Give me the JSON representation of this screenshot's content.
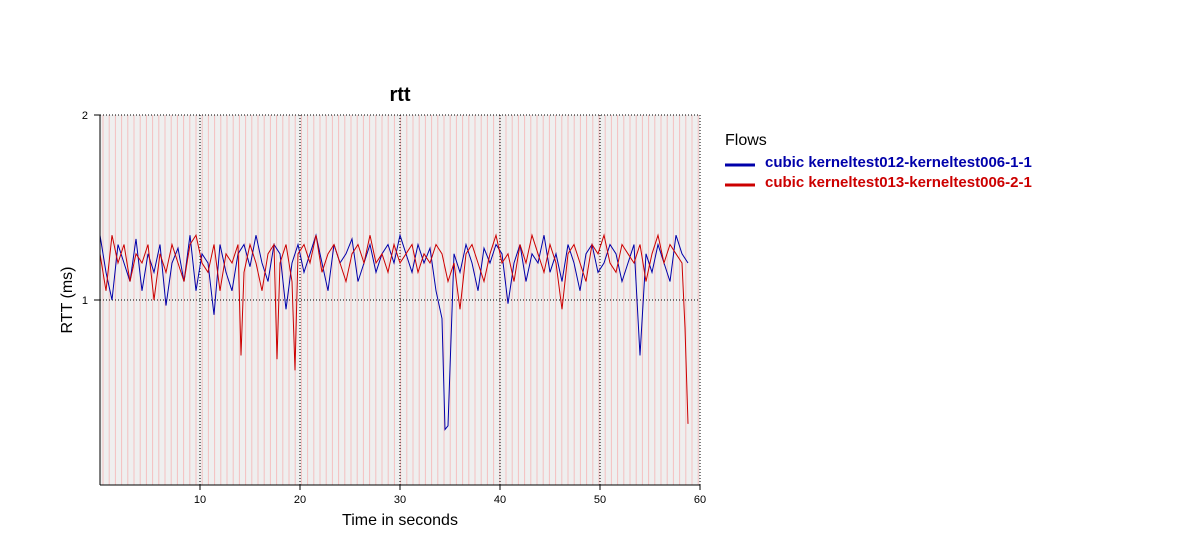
{
  "chart_data": {
    "type": "line",
    "title": "rtt",
    "xlabel": "Time in seconds",
    "ylabel": "RTT (ms)",
    "xlim": [
      0,
      60
    ],
    "ylim": [
      0,
      2
    ],
    "x_ticks": [
      "10",
      "20",
      "30",
      "40",
      "50",
      "60"
    ],
    "y_ticks": [
      "1",
      "2"
    ],
    "grid": true,
    "legend": {
      "title": "Flows",
      "placement": "right"
    },
    "series": [
      {
        "name": "cubic kerneltest012-kerneltest006-1-1",
        "color": "#0000aa",
        "x": [
          0,
          0.6,
          1.2,
          1.8,
          2.4,
          3,
          3.6,
          4.2,
          4.8,
          5.4,
          6,
          6.6,
          7.2,
          7.8,
          8.4,
          9,
          9.6,
          10.2,
          10.8,
          11.4,
          12,
          12.6,
          13.2,
          13.8,
          14.4,
          15,
          15.6,
          16.2,
          16.8,
          17.4,
          18,
          18.6,
          19.2,
          19.8,
          20.4,
          21,
          21.6,
          22.2,
          22.8,
          23.4,
          24,
          24.6,
          25.2,
          25.8,
          26.4,
          27,
          27.6,
          28.2,
          28.8,
          29.4,
          30,
          30.6,
          31.2,
          31.8,
          32.4,
          33,
          33.6,
          34.2,
          34.5,
          34.8,
          35.4,
          36,
          36.6,
          37.2,
          37.8,
          38.4,
          39,
          39.6,
          40.2,
          40.8,
          41.4,
          42,
          42.6,
          43.2,
          43.8,
          44.4,
          45,
          45.6,
          46.2,
          46.8,
          47.4,
          48,
          48.6,
          49.2,
          49.8,
          50.4,
          51,
          51.6,
          52.2,
          52.8,
          53.4,
          54,
          54.6,
          55.2,
          55.8,
          56.4,
          57,
          57.6,
          58.2,
          58.8
        ],
        "values": [
          1.35,
          1.15,
          1.0,
          1.3,
          1.2,
          1.1,
          1.33,
          1.05,
          1.25,
          1.15,
          1.3,
          0.97,
          1.2,
          1.28,
          1.1,
          1.35,
          1.05,
          1.25,
          1.2,
          0.92,
          1.3,
          1.15,
          1.05,
          1.25,
          1.3,
          1.18,
          1.35,
          1.2,
          1.1,
          1.3,
          1.25,
          0.95,
          1.2,
          1.3,
          1.15,
          1.25,
          1.35,
          1.2,
          1.05,
          1.3,
          1.2,
          1.25,
          1.33,
          1.1,
          1.2,
          1.3,
          1.15,
          1.25,
          1.3,
          1.2,
          1.35,
          1.25,
          1.15,
          1.3,
          1.2,
          1.28,
          1.05,
          0.9,
          0.3,
          0.32,
          1.25,
          1.15,
          1.3,
          1.2,
          1.05,
          1.28,
          1.2,
          1.3,
          1.25,
          0.98,
          1.2,
          1.3,
          1.1,
          1.25,
          1.2,
          1.35,
          1.15,
          1.25,
          1.1,
          1.3,
          1.2,
          1.05,
          1.25,
          1.3,
          1.15,
          1.2,
          1.3,
          1.25,
          1.1,
          1.2,
          1.3,
          0.7,
          1.25,
          1.15,
          1.3,
          1.2,
          1.1,
          1.35,
          1.25,
          1.2
        ]
      },
      {
        "name": "cubic kerneltest013-kerneltest006-2-1",
        "color": "#cc0000",
        "x": [
          0,
          0.6,
          1.2,
          1.8,
          2.4,
          3,
          3.6,
          4.2,
          4.8,
          5.4,
          6,
          6.6,
          7.2,
          7.8,
          8.4,
          9,
          9.6,
          10.2,
          10.8,
          11.4,
          12,
          12.6,
          13.2,
          13.8,
          14.1,
          14.4,
          15,
          15.6,
          16.2,
          16.8,
          17.4,
          17.7,
          18,
          18.6,
          19.2,
          19.5,
          19.8,
          20.4,
          21,
          21.6,
          22.2,
          22.8,
          23.4,
          24,
          24.6,
          25.2,
          25.8,
          26.4,
          27,
          27.6,
          28.2,
          28.8,
          29.4,
          30,
          30.6,
          31.2,
          31.8,
          32.4,
          33,
          33.6,
          34.2,
          34.8,
          35.4,
          36,
          36.6,
          37.2,
          37.8,
          38.4,
          39,
          39.6,
          40.2,
          40.8,
          41.4,
          42,
          42.6,
          43.2,
          43.8,
          44.4,
          45,
          45.6,
          46.2,
          46.8,
          47.4,
          48,
          48.6,
          49.2,
          49.8,
          50.4,
          51,
          51.6,
          52.2,
          52.8,
          53.4,
          54,
          54.6,
          55.2,
          55.8,
          56.4,
          57,
          57.6,
          58.2,
          58.5,
          58.8
        ],
        "values": [
          1.25,
          1.05,
          1.35,
          1.2,
          1.3,
          1.1,
          1.25,
          1.2,
          1.3,
          1.0,
          1.25,
          1.15,
          1.3,
          1.2,
          1.1,
          1.3,
          1.35,
          1.2,
          1.15,
          1.3,
          1.05,
          1.25,
          1.2,
          1.3,
          0.7,
          1.15,
          1.3,
          1.2,
          1.05,
          1.25,
          1.3,
          0.68,
          1.2,
          1.3,
          1.1,
          0.62,
          1.25,
          1.3,
          1.2,
          1.35,
          1.15,
          1.25,
          1.3,
          1.2,
          1.1,
          1.25,
          1.3,
          1.2,
          1.35,
          1.2,
          1.25,
          1.15,
          1.3,
          1.2,
          1.25,
          1.3,
          1.15,
          1.25,
          1.2,
          1.3,
          1.25,
          1.1,
          1.2,
          0.95,
          1.25,
          1.3,
          1.2,
          1.1,
          1.25,
          1.35,
          1.2,
          1.25,
          1.1,
          1.3,
          1.2,
          1.35,
          1.25,
          1.15,
          1.3,
          1.2,
          0.95,
          1.25,
          1.3,
          1.2,
          1.1,
          1.3,
          1.25,
          1.35,
          1.2,
          1.15,
          1.3,
          1.25,
          1.2,
          1.3,
          1.1,
          1.25,
          1.35,
          1.2,
          1.3,
          1.25,
          1.2,
          0.85,
          0.33
        ]
      }
    ]
  },
  "colors": {
    "plot_background": "#efefef",
    "background_stripe": "#f4c0c0",
    "grid": "#000000"
  }
}
